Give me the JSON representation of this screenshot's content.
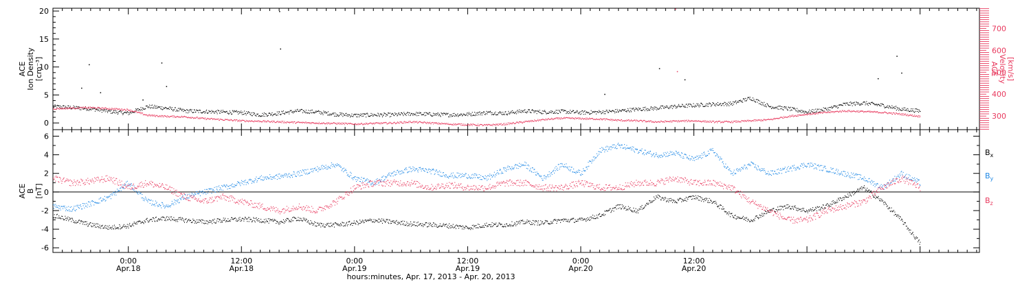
{
  "chart_data": [
    {
      "type": "scatter",
      "panel": "ace-density-velocity",
      "ylabel": [
        "ACE",
        "Ion Density",
        "[cm⁻³]"
      ],
      "ylim": [
        -1.2,
        20.5
      ],
      "yticks": [
        0,
        5,
        10,
        15,
        20
      ],
      "y2label": [
        "ACE",
        "Velocity",
        "[km/s]"
      ],
      "y2lim": [
        238,
        792
      ],
      "y2ticks": [
        300,
        400,
        500,
        600,
        700
      ],
      "x_hours_range": [
        -8.0,
        90.3
      ],
      "series": [
        {
          "name": "density",
          "color": "#000000",
          "x": [
            -8,
            -6,
            -4,
            -2,
            0,
            2,
            4,
            6,
            8,
            10,
            12,
            14,
            16,
            18,
            20,
            22,
            24,
            26,
            28,
            30,
            32,
            34,
            36,
            38,
            40,
            42,
            44,
            46,
            48,
            50,
            52,
            54,
            56,
            58,
            60,
            62,
            64,
            66,
            68,
            70,
            72,
            74,
            76,
            78,
            80,
            82,
            84
          ],
          "y": [
            3.0,
            2.8,
            2.6,
            2.1,
            1.8,
            3.0,
            2.7,
            2.2,
            2.1,
            2.0,
            1.9,
            1.5,
            1.8,
            2.2,
            2.0,
            1.6,
            1.4,
            1.5,
            1.5,
            1.7,
            1.6,
            1.5,
            1.6,
            1.9,
            1.8,
            2.2,
            2.0,
            2.1,
            1.9,
            2.0,
            2.2,
            2.5,
            2.7,
            3.0,
            3.2,
            3.4,
            3.5,
            4.5,
            3.0,
            2.6,
            2.0,
            2.5,
            3.4,
            3.6,
            3.2,
            2.5,
            2.2
          ],
          "outliers_x": [
            -5.0,
            -4.2,
            -3.0,
            1.5,
            3.5,
            4.0,
            16.0,
            16.1,
            50.5,
            56.3,
            59.0,
            79.5,
            81.5,
            82.0
          ],
          "outliers_y": [
            6.3,
            10.5,
            5.5,
            4.2,
            10.8,
            6.6,
            20.0,
            13.3,
            5.2,
            9.8,
            7.8,
            8.0,
            12.0,
            9.0
          ]
        },
        {
          "name": "velocity",
          "color": "#e8385d",
          "axis": "right",
          "x": [
            -8,
            -6,
            -4,
            -2,
            0,
            2,
            4,
            6,
            8,
            10,
            12,
            14,
            16,
            18,
            20,
            22,
            24,
            26,
            28,
            30,
            32,
            34,
            36,
            38,
            40,
            42,
            44,
            46,
            48,
            50,
            52,
            54,
            56,
            58,
            60,
            62,
            64,
            66,
            68,
            70,
            72,
            74,
            76,
            78,
            80,
            82,
            84
          ],
          "y": [
            335,
            338,
            340,
            335,
            330,
            305,
            300,
            298,
            290,
            285,
            280,
            278,
            275,
            272,
            270,
            268,
            265,
            268,
            270,
            275,
            270,
            265,
            262,
            260,
            265,
            275,
            285,
            292,
            290,
            288,
            282,
            280,
            275,
            278,
            280,
            275,
            275,
            280,
            285,
            300,
            310,
            318,
            325,
            322,
            318,
            310,
            300
          ],
          "outliers_x": [
            58.0,
            58.2
          ],
          "outliers_y": [
            790,
            505
          ]
        }
      ]
    },
    {
      "type": "scatter",
      "panel": "ace-magnetic-field",
      "ylabel": [
        "ACE",
        "B",
        "[nT]"
      ],
      "ylim": [
        -6.5,
        6.7
      ],
      "yticks": [
        -6,
        -4,
        -2,
        0,
        2,
        4,
        6
      ],
      "zero_line": true,
      "x_hours_range": [
        -8.0,
        90.3
      ],
      "legend_position": "right",
      "series": [
        {
          "name": "B",
          "subscript": "x",
          "color": "#000000",
          "x": [
            -8,
            -6,
            -4,
            -2,
            0,
            2,
            4,
            6,
            8,
            10,
            12,
            14,
            16,
            18,
            20,
            22,
            24,
            26,
            28,
            30,
            32,
            34,
            36,
            38,
            40,
            42,
            44,
            46,
            48,
            50,
            52,
            54,
            56,
            58,
            60,
            62,
            64,
            66,
            68,
            70,
            72,
            74,
            76,
            78,
            80,
            82,
            84
          ],
          "y": [
            -2.5,
            -3.0,
            -3.5,
            -3.8,
            -3.6,
            -3.0,
            -2.8,
            -3.0,
            -3.2,
            -3.0,
            -2.9,
            -3.0,
            -3.2,
            -2.8,
            -3.5,
            -3.5,
            -3.3,
            -3.0,
            -3.2,
            -3.4,
            -3.5,
            -3.6,
            -3.8,
            -3.5,
            -3.5,
            -3.2,
            -3.3,
            -3.0,
            -3.0,
            -2.5,
            -1.5,
            -2.0,
            -0.5,
            -1.0,
            -0.5,
            -1.0,
            -2.5,
            -3.0,
            -2.0,
            -1.5,
            -2.0,
            -1.5,
            -0.5,
            0.5,
            -1.0,
            -3.0,
            -5.5
          ]
        },
        {
          "name": "B",
          "subscript": "y",
          "color": "#1e88e5",
          "x": [
            -8,
            -6,
            -4,
            -2,
            0,
            2,
            4,
            6,
            8,
            10,
            12,
            14,
            16,
            18,
            20,
            22,
            24,
            26,
            28,
            30,
            32,
            34,
            36,
            38,
            40,
            42,
            44,
            46,
            48,
            50,
            52,
            54,
            56,
            58,
            60,
            62,
            64,
            66,
            68,
            70,
            72,
            74,
            76,
            78,
            80,
            82,
            84
          ],
          "y": [
            -1.5,
            -1.8,
            -1.2,
            -0.5,
            1.0,
            -1.0,
            -1.5,
            -0.5,
            0.0,
            0.5,
            1.0,
            1.5,
            1.7,
            2.0,
            2.5,
            3.0,
            1.5,
            1.0,
            2.0,
            2.5,
            2.3,
            1.8,
            1.8,
            1.5,
            2.5,
            3.0,
            1.5,
            3.0,
            2.0,
            4.5,
            5.0,
            4.5,
            4.0,
            4.2,
            3.5,
            4.5,
            2.0,
            3.0,
            2.0,
            2.5,
            3.0,
            2.5,
            2.0,
            1.5,
            0.5,
            2.0,
            1.0
          ]
        },
        {
          "name": "B",
          "subscript": "z",
          "color": "#e8385d",
          "x": [
            -8,
            -6,
            -4,
            -2,
            0,
            2,
            4,
            6,
            8,
            10,
            12,
            14,
            16,
            18,
            20,
            22,
            24,
            26,
            28,
            30,
            32,
            34,
            36,
            38,
            40,
            42,
            44,
            46,
            48,
            50,
            52,
            54,
            56,
            58,
            60,
            62,
            64,
            66,
            68,
            70,
            72,
            74,
            76,
            78,
            80,
            82,
            84
          ],
          "y": [
            1.5,
            1.0,
            1.2,
            1.5,
            0.5,
            1.0,
            0.5,
            -0.5,
            -1.0,
            -0.5,
            -1.0,
            -1.5,
            -2.0,
            -1.5,
            -2.0,
            -1.0,
            0.5,
            1.0,
            1.0,
            1.0,
            0.5,
            0.8,
            0.5,
            0.5,
            1.0,
            1.0,
            0.5,
            0.5,
            1.0,
            0.5,
            0.5,
            1.0,
            1.0,
            1.5,
            1.0,
            1.0,
            0.5,
            -1.0,
            -2.0,
            -3.0,
            -3.0,
            -2.0,
            -1.5,
            -1.0,
            0.5,
            1.5,
            0.5
          ]
        }
      ]
    }
  ],
  "x_axis": {
    "ticks": [
      {
        "hours": 0,
        "time": "0:00",
        "date": "Apr.18"
      },
      {
        "hours": 12,
        "time": "12:00",
        "date": "Apr.18"
      },
      {
        "hours": 24,
        "time": "0:00",
        "date": "Apr.19"
      },
      {
        "hours": 36,
        "time": "12:00",
        "date": "Apr.19"
      },
      {
        "hours": 48,
        "time": "0:00",
        "date": "Apr.20"
      },
      {
        "hours": 60,
        "time": "12:00",
        "date": "Apr.20"
      }
    ],
    "minor_tick_hours": 1,
    "label": "hours:minutes, Apr. 17, 2013 - Apr. 20, 2013"
  }
}
